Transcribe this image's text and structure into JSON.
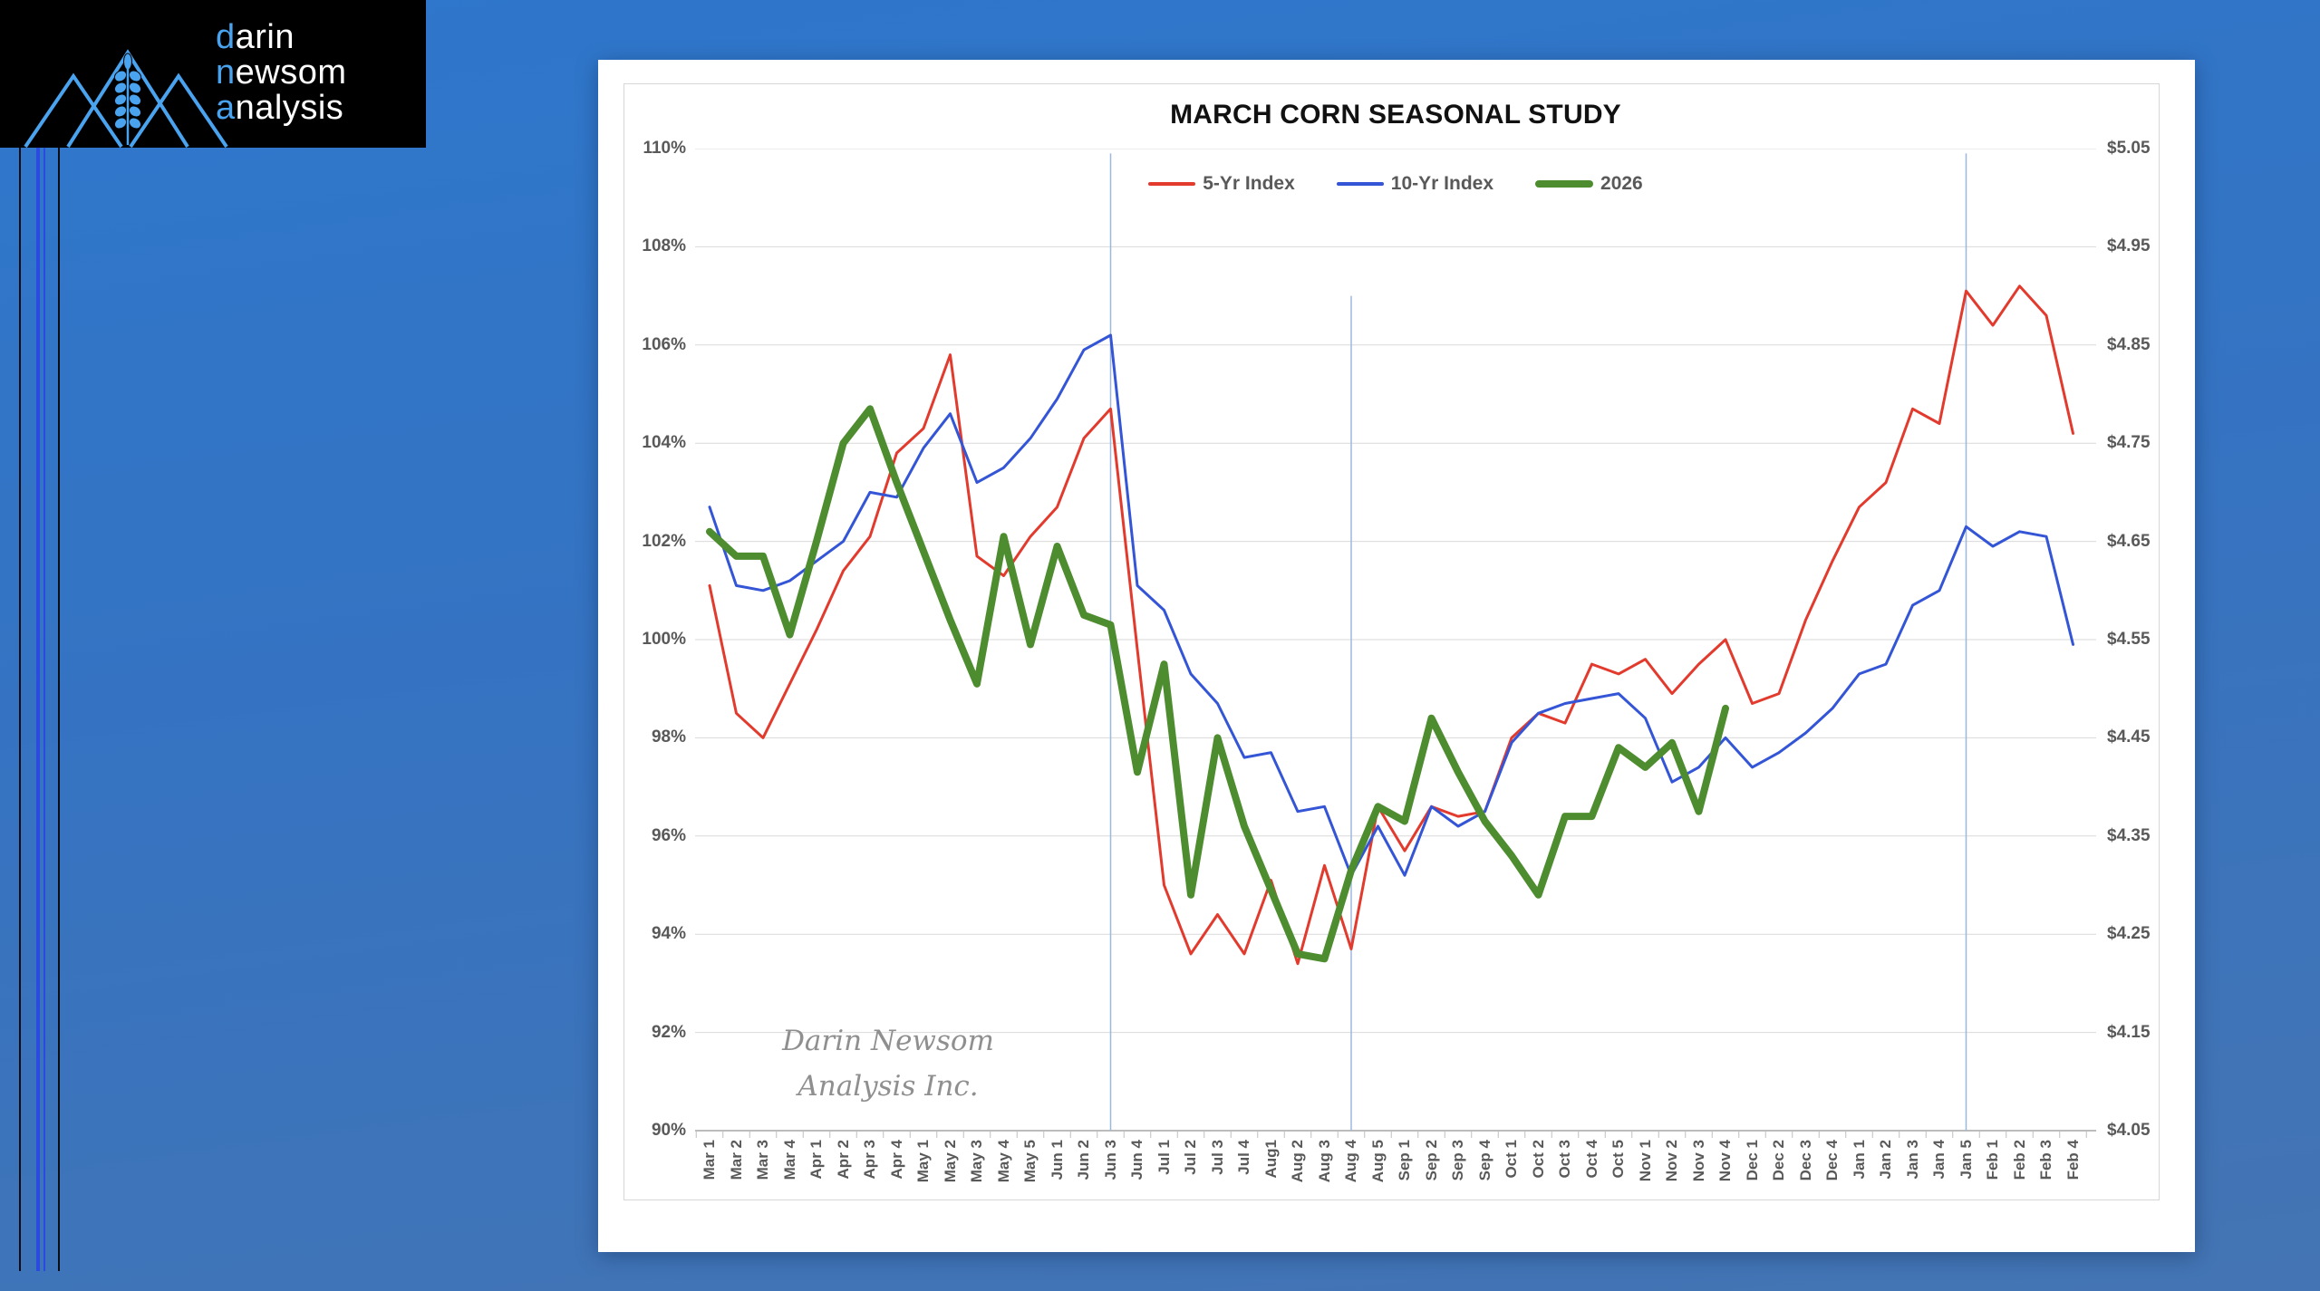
{
  "logo": {
    "background": "#000000",
    "accent_color": "#4aa3ee",
    "text_color": "#ffffff",
    "line1_highlight": "d",
    "line1_rest": "arin",
    "line2_highlight": "n",
    "line2_rest": "ewsom",
    "line3_highlight": "a",
    "line3_rest": "nalysis"
  },
  "watermark": {
    "line1": "Darin Newsom",
    "line2": "Analysis Inc."
  },
  "chart_data": {
    "type": "line",
    "title": "MARCH CORN SEASONAL STUDY",
    "legend_position": "top",
    "grid": "horizontal",
    "ylim": [
      90,
      110
    ],
    "right_ylim": [
      4.05,
      5.05
    ],
    "left_axis_labels": [
      "110%",
      "108%",
      "106%",
      "104%",
      "102%",
      "100%",
      "98%",
      "96%",
      "94%",
      "92%",
      "90%"
    ],
    "right_axis_labels": [
      "$5.05",
      "$4.95",
      "$4.85",
      "$4.75",
      "$4.65",
      "$4.55",
      "$4.45",
      "$4.35",
      "$4.25",
      "$4.15",
      "$4.05"
    ],
    "categories": [
      "Mar 1",
      "Mar 2",
      "Mar 3",
      "Mar 4",
      "Apr 1",
      "Apr 2",
      "Apr 3",
      "Apr 4",
      "May 1",
      "May 2",
      "May 3",
      "May 4",
      "May 5",
      "Jun 1",
      "Jun 2",
      "Jun 3",
      "Jun 4",
      "Jul 1",
      "Jul 2",
      "Jul 3",
      "Jul 4",
      "Aug1",
      "Aug 2",
      "Aug 3",
      "Aug 4",
      "Aug 5",
      "Sep 1",
      "Sep 2",
      "Sep 3",
      "Sep 4",
      "Oct 1",
      "Oct 2",
      "Oct 3",
      "Oct 4",
      "Oct 5",
      "Nov 1",
      "Nov 2",
      "Nov 3",
      "Nov 4",
      "Dec 1",
      "Dec 2",
      "Dec 3",
      "Dec 4",
      "Jan 1",
      "Jan 2",
      "Jan 3",
      "Jan 4",
      "Jan 5",
      "Feb 1",
      "Feb 2",
      "Feb 3",
      "Feb 4"
    ],
    "series": [
      {
        "name": "5-Yr Index",
        "color": "#e23b2e",
        "stroke_width": 3,
        "values": [
          101.1,
          98.5,
          98.0,
          99.1,
          100.2,
          101.4,
          102.1,
          103.8,
          104.3,
          105.8,
          101.7,
          101.3,
          102.1,
          102.7,
          104.1,
          104.7,
          99.8,
          95.0,
          93.6,
          94.4,
          93.6,
          95.1,
          93.4,
          95.4,
          93.7,
          96.6,
          95.7,
          96.6,
          96.4,
          96.5,
          98.0,
          98.5,
          98.3,
          99.5,
          99.3,
          99.6,
          98.9,
          99.5,
          100.0,
          98.7,
          98.9,
          100.4,
          101.6,
          102.7,
          103.2,
          104.7,
          104.4,
          107.1,
          106.4,
          107.2,
          106.6,
          104.2
        ]
      },
      {
        "name": "10-Yr Index",
        "color": "#3355d6",
        "stroke_width": 3,
        "values": [
          102.7,
          101.1,
          101.0,
          101.2,
          101.6,
          102.0,
          103.0,
          102.9,
          103.9,
          104.6,
          103.2,
          103.5,
          104.1,
          104.9,
          105.9,
          106.2,
          101.1,
          100.6,
          99.3,
          98.7,
          97.6,
          97.7,
          96.5,
          96.6,
          95.2,
          96.2,
          95.2,
          96.6,
          96.2,
          96.5,
          97.9,
          98.5,
          98.7,
          98.8,
          98.9,
          98.4,
          97.1,
          97.4,
          98.0,
          97.4,
          97.7,
          98.1,
          98.6,
          99.3,
          99.5,
          100.7,
          101.0,
          102.3,
          101.9,
          102.2,
          102.1,
          99.9
        ]
      },
      {
        "name": "2026",
        "color": "#4d8c2f",
        "stroke_width": 8,
        "values": [
          102.2,
          101.7,
          101.7,
          100.1,
          102.0,
          104.0,
          104.7,
          103.2,
          101.8,
          100.4,
          99.1,
          102.1,
          99.9,
          101.9,
          100.5,
          100.3,
          97.3,
          99.5,
          94.8,
          98.0,
          96.2,
          94.9,
          93.6,
          93.5,
          95.3,
          96.6,
          96.3,
          98.4,
          97.3,
          96.3,
          95.6,
          94.8,
          96.4,
          96.4,
          97.8,
          97.4,
          97.9,
          96.5,
          98.6,
          null,
          null,
          null,
          null,
          null,
          null,
          null,
          null,
          null,
          null,
          null,
          null,
          null
        ]
      }
    ],
    "vertical_reference_lines": [
      {
        "category": "Jun 3",
        "top_value": 109.9,
        "color": "#9db7de"
      },
      {
        "category": "Aug 4",
        "top_value": 107.0,
        "color": "#9db7de"
      },
      {
        "category": "Jan 5",
        "top_value": 109.9,
        "color": "#9db7de"
      }
    ]
  }
}
